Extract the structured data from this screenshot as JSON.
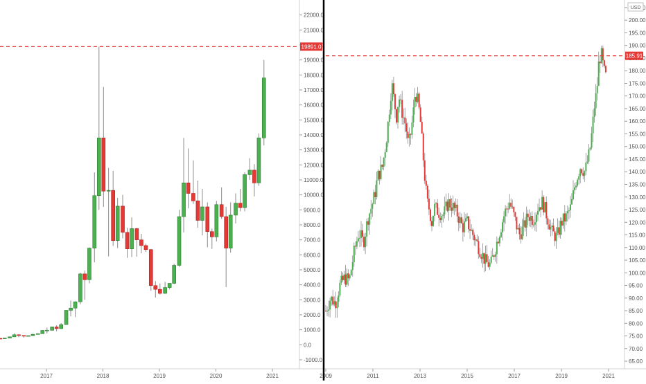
{
  "colors": {
    "up": "#4caf50",
    "down": "#e53935",
    "wick": "#8a8a8a",
    "ref_line": "#e53935",
    "divider": "#000000",
    "axis_text": "#555555"
  },
  "chart_data": [
    {
      "type": "candlestick",
      "ylim": [
        -1600,
        23000
      ],
      "y_ticks": [
        "-1000.0",
        "0.0",
        "1000.0",
        "2000.0",
        "3000.0",
        "4000.0",
        "5000.0",
        "6000.0",
        "7000.0",
        "8000.0",
        "9000.0",
        "10000.0",
        "11000.0",
        "12000.0",
        "13000.0",
        "14000.0",
        "15000.0",
        "16000.0",
        "17000.0",
        "18000.0",
        "19000.0",
        "20000.0",
        "21000.0",
        "22000.0"
      ],
      "x_ticks": [
        {
          "label": "2017",
          "t": 2017.0
        },
        {
          "label": "2018",
          "t": 2018.0
        },
        {
          "label": "2019",
          "t": 2019.0
        },
        {
          "label": "2020",
          "t": 2020.0
        },
        {
          "label": "2021",
          "t": 2021.0
        }
      ],
      "reference_line": {
        "value": 19891.0,
        "label": "19891.0"
      },
      "candles": [
        {
          "t": 2016.18,
          "o": 430,
          "h": 450,
          "l": 410,
          "c": 420
        },
        {
          "t": 2016.26,
          "o": 420,
          "h": 470,
          "l": 415,
          "c": 450
        },
        {
          "t": 2016.35,
          "o": 450,
          "h": 550,
          "l": 440,
          "c": 530
        },
        {
          "t": 2016.43,
          "o": 530,
          "h": 760,
          "l": 520,
          "c": 670
        },
        {
          "t": 2016.51,
          "o": 670,
          "h": 700,
          "l": 500,
          "c": 620
        },
        {
          "t": 2016.6,
          "o": 620,
          "h": 630,
          "l": 480,
          "c": 575
        },
        {
          "t": 2016.68,
          "o": 575,
          "h": 620,
          "l": 560,
          "c": 610
        },
        {
          "t": 2016.76,
          "o": 610,
          "h": 740,
          "l": 600,
          "c": 700
        },
        {
          "t": 2016.85,
          "o": 700,
          "h": 760,
          "l": 690,
          "c": 740
        },
        {
          "t": 2016.93,
          "o": 740,
          "h": 980,
          "l": 730,
          "c": 960
        },
        {
          "t": 2017.01,
          "o": 960,
          "h": 1150,
          "l": 750,
          "c": 970
        },
        {
          "t": 2017.1,
          "o": 970,
          "h": 1200,
          "l": 950,
          "c": 1190
        },
        {
          "t": 2017.18,
          "o": 1190,
          "h": 1300,
          "l": 900,
          "c": 1080
        },
        {
          "t": 2017.26,
          "o": 1080,
          "h": 1450,
          "l": 1050,
          "c": 1350
        },
        {
          "t": 2017.35,
          "o": 1350,
          "h": 2300,
          "l": 1340,
          "c": 2300
        },
        {
          "t": 2017.43,
          "o": 2300,
          "h": 2950,
          "l": 1900,
          "c": 2450
        },
        {
          "t": 2017.51,
          "o": 2450,
          "h": 2900,
          "l": 1850,
          "c": 2870
        },
        {
          "t": 2017.6,
          "o": 2870,
          "h": 4800,
          "l": 2700,
          "c": 4730
        },
        {
          "t": 2017.68,
          "o": 4730,
          "h": 4950,
          "l": 3000,
          "c": 4340
        },
        {
          "t": 2017.76,
          "o": 4340,
          "h": 6500,
          "l": 4100,
          "c": 6450
        },
        {
          "t": 2017.85,
          "o": 6450,
          "h": 11500,
          "l": 5500,
          "c": 9950
        },
        {
          "t": 2017.93,
          "o": 9950,
          "h": 19891,
          "l": 9000,
          "c": 13800
        },
        {
          "t": 2018.01,
          "o": 13800,
          "h": 17200,
          "l": 9200,
          "c": 10250
        },
        {
          "t": 2018.1,
          "o": 10250,
          "h": 11800,
          "l": 5900,
          "c": 10300
        },
        {
          "t": 2018.18,
          "o": 10300,
          "h": 11600,
          "l": 6600,
          "c": 6950
        },
        {
          "t": 2018.26,
          "o": 6950,
          "h": 9800,
          "l": 6450,
          "c": 9250
        },
        {
          "t": 2018.35,
          "o": 9250,
          "h": 10000,
          "l": 7100,
          "c": 7500
        },
        {
          "t": 2018.43,
          "o": 7500,
          "h": 7800,
          "l": 5800,
          "c": 6400
        },
        {
          "t": 2018.51,
          "o": 6400,
          "h": 8500,
          "l": 5850,
          "c": 7750
        },
        {
          "t": 2018.6,
          "o": 7750,
          "h": 7800,
          "l": 5880,
          "c": 7000
        },
        {
          "t": 2018.68,
          "o": 7000,
          "h": 7400,
          "l": 6100,
          "c": 6620
        },
        {
          "t": 2018.76,
          "o": 6620,
          "h": 6750,
          "l": 6200,
          "c": 6350
        },
        {
          "t": 2018.85,
          "o": 6350,
          "h": 6400,
          "l": 3600,
          "c": 3950
        },
        {
          "t": 2018.93,
          "o": 3950,
          "h": 4250,
          "l": 3150,
          "c": 3700
        },
        {
          "t": 2019.01,
          "o": 3700,
          "h": 4100,
          "l": 3350,
          "c": 3430
        },
        {
          "t": 2019.1,
          "o": 3430,
          "h": 4200,
          "l": 3400,
          "c": 3820
        },
        {
          "t": 2019.18,
          "o": 3820,
          "h": 4100,
          "l": 3700,
          "c": 4100
        },
        {
          "t": 2019.26,
          "o": 4100,
          "h": 5400,
          "l": 4050,
          "c": 5300
        },
        {
          "t": 2019.35,
          "o": 5300,
          "h": 9000,
          "l": 5200,
          "c": 8550
        },
        {
          "t": 2019.43,
          "o": 8550,
          "h": 13800,
          "l": 7500,
          "c": 10800
        },
        {
          "t": 2019.51,
          "o": 10800,
          "h": 13100,
          "l": 9100,
          "c": 10100
        },
        {
          "t": 2019.6,
          "o": 10100,
          "h": 12300,
          "l": 9400,
          "c": 9600
        },
        {
          "t": 2019.68,
          "o": 9600,
          "h": 10950,
          "l": 7800,
          "c": 8300
        },
        {
          "t": 2019.76,
          "o": 8300,
          "h": 10400,
          "l": 7300,
          "c": 9200
        },
        {
          "t": 2019.85,
          "o": 9200,
          "h": 9500,
          "l": 6500,
          "c": 7550
        },
        {
          "t": 2019.93,
          "o": 7550,
          "h": 7750,
          "l": 6400,
          "c": 7200
        },
        {
          "t": 2020.01,
          "o": 7200,
          "h": 9600,
          "l": 6900,
          "c": 9350
        },
        {
          "t": 2020.1,
          "o": 9350,
          "h": 10500,
          "l": 8400,
          "c": 8550
        },
        {
          "t": 2020.18,
          "o": 8550,
          "h": 9200,
          "l": 3850,
          "c": 6450
        },
        {
          "t": 2020.26,
          "o": 6450,
          "h": 9500,
          "l": 6150,
          "c": 8650
        },
        {
          "t": 2020.35,
          "o": 8650,
          "h": 10100,
          "l": 8100,
          "c": 9450
        },
        {
          "t": 2020.43,
          "o": 9450,
          "h": 10400,
          "l": 8900,
          "c": 9150
        },
        {
          "t": 2020.51,
          "o": 9150,
          "h": 11500,
          "l": 8900,
          "c": 11350
        },
        {
          "t": 2020.6,
          "o": 11350,
          "h": 12450,
          "l": 11000,
          "c": 11650
        },
        {
          "t": 2020.68,
          "o": 11650,
          "h": 12050,
          "l": 9900,
          "c": 10800
        },
        {
          "t": 2020.76,
          "o": 10800,
          "h": 14100,
          "l": 10600,
          "c": 13800
        },
        {
          "t": 2020.85,
          "o": 13800,
          "h": 19000,
          "l": 13300,
          "c": 17800
        }
      ]
    },
    {
      "type": "candlestick",
      "ylim": [
        62,
        208
      ],
      "y_ticks": [
        "65.00",
        "70.00",
        "75.00",
        "80.00",
        "85.00",
        "90.00",
        "95.00",
        "100.00",
        "105.00",
        "110.00",
        "115.00",
        "120.00",
        "125.00",
        "130.00",
        "135.00",
        "140.00",
        "145.00",
        "150.00",
        "155.00",
        "160.00",
        "165.00",
        "170.00",
        "175.00",
        "180.00",
        "185.00",
        "190.00",
        "195.00",
        "200.00",
        "205.00"
      ],
      "x_ticks": [
        {
          "label": "2009",
          "t": 2009.0
        },
        {
          "label": "2011",
          "t": 2011.0
        },
        {
          "label": "2013",
          "t": 2013.0
        },
        {
          "label": "2015",
          "t": 2015.0
        },
        {
          "label": "2017",
          "t": 2017.0
        },
        {
          "label": "2019",
          "t": 2019.0
        },
        {
          "label": "2021",
          "t": 2021.0
        }
      ],
      "currency": "USD",
      "reference_line": {
        "value": 185.91,
        "label": "185.91"
      },
      "points": [
        [
          2009.0,
          85
        ],
        [
          2009.2,
          90
        ],
        [
          2009.4,
          88
        ],
        [
          2009.6,
          95
        ],
        [
          2009.8,
          98
        ],
        [
          2010.0,
          97
        ],
        [
          2010.2,
          108
        ],
        [
          2010.4,
          116
        ],
        [
          2010.6,
          112
        ],
        [
          2010.8,
          122
        ],
        [
          2011.0,
          128
        ],
        [
          2011.1,
          132
        ],
        [
          2011.2,
          138
        ],
        [
          2011.4,
          142
        ],
        [
          2011.5,
          148
        ],
        [
          2011.6,
          155
        ],
        [
          2011.7,
          165
        ],
        [
          2011.8,
          175
        ],
        [
          2011.9,
          168
        ],
        [
          2012.0,
          162
        ],
        [
          2012.1,
          170
        ],
        [
          2012.2,
          165
        ],
        [
          2012.4,
          158
        ],
        [
          2012.5,
          150
        ],
        [
          2012.6,
          155
        ],
        [
          2012.7,
          162
        ],
        [
          2012.8,
          172
        ],
        [
          2012.9,
          168
        ],
        [
          2013.0,
          162
        ],
        [
          2013.1,
          150
        ],
        [
          2013.2,
          138
        ],
        [
          2013.3,
          128
        ],
        [
          2013.4,
          125
        ],
        [
          2013.5,
          120
        ],
        [
          2013.6,
          126
        ],
        [
          2013.8,
          124
        ],
        [
          2014.0,
          123
        ],
        [
          2014.2,
          128
        ],
        [
          2014.4,
          126
        ],
        [
          2014.6,
          123
        ],
        [
          2014.8,
          118
        ],
        [
          2015.0,
          120
        ],
        [
          2015.2,
          116
        ],
        [
          2015.4,
          112
        ],
        [
          2015.6,
          108
        ],
        [
          2015.8,
          104
        ],
        [
          2016.0,
          103
        ],
        [
          2016.2,
          110
        ],
        [
          2016.4,
          117
        ],
        [
          2016.6,
          124
        ],
        [
          2016.8,
          128
        ],
        [
          2017.0,
          122
        ],
        [
          2017.2,
          115
        ],
        [
          2017.4,
          118
        ],
        [
          2017.6,
          123
        ],
        [
          2017.8,
          121
        ],
        [
          2018.0,
          126
        ],
        [
          2018.2,
          128
        ],
        [
          2018.4,
          122
        ],
        [
          2018.6,
          116
        ],
        [
          2018.8,
          114
        ],
        [
          2019.0,
          120
        ],
        [
          2019.2,
          122
        ],
        [
          2019.4,
          126
        ],
        [
          2019.6,
          136
        ],
        [
          2019.8,
          142
        ],
        [
          2020.0,
          140
        ],
        [
          2020.2,
          148
        ],
        [
          2020.3,
          156
        ],
        [
          2020.4,
          166
        ],
        [
          2020.5,
          172
        ],
        [
          2020.6,
          185
        ],
        [
          2020.7,
          186
        ],
        [
          2020.8,
          180
        ],
        [
          2020.9,
          177
        ]
      ]
    }
  ]
}
